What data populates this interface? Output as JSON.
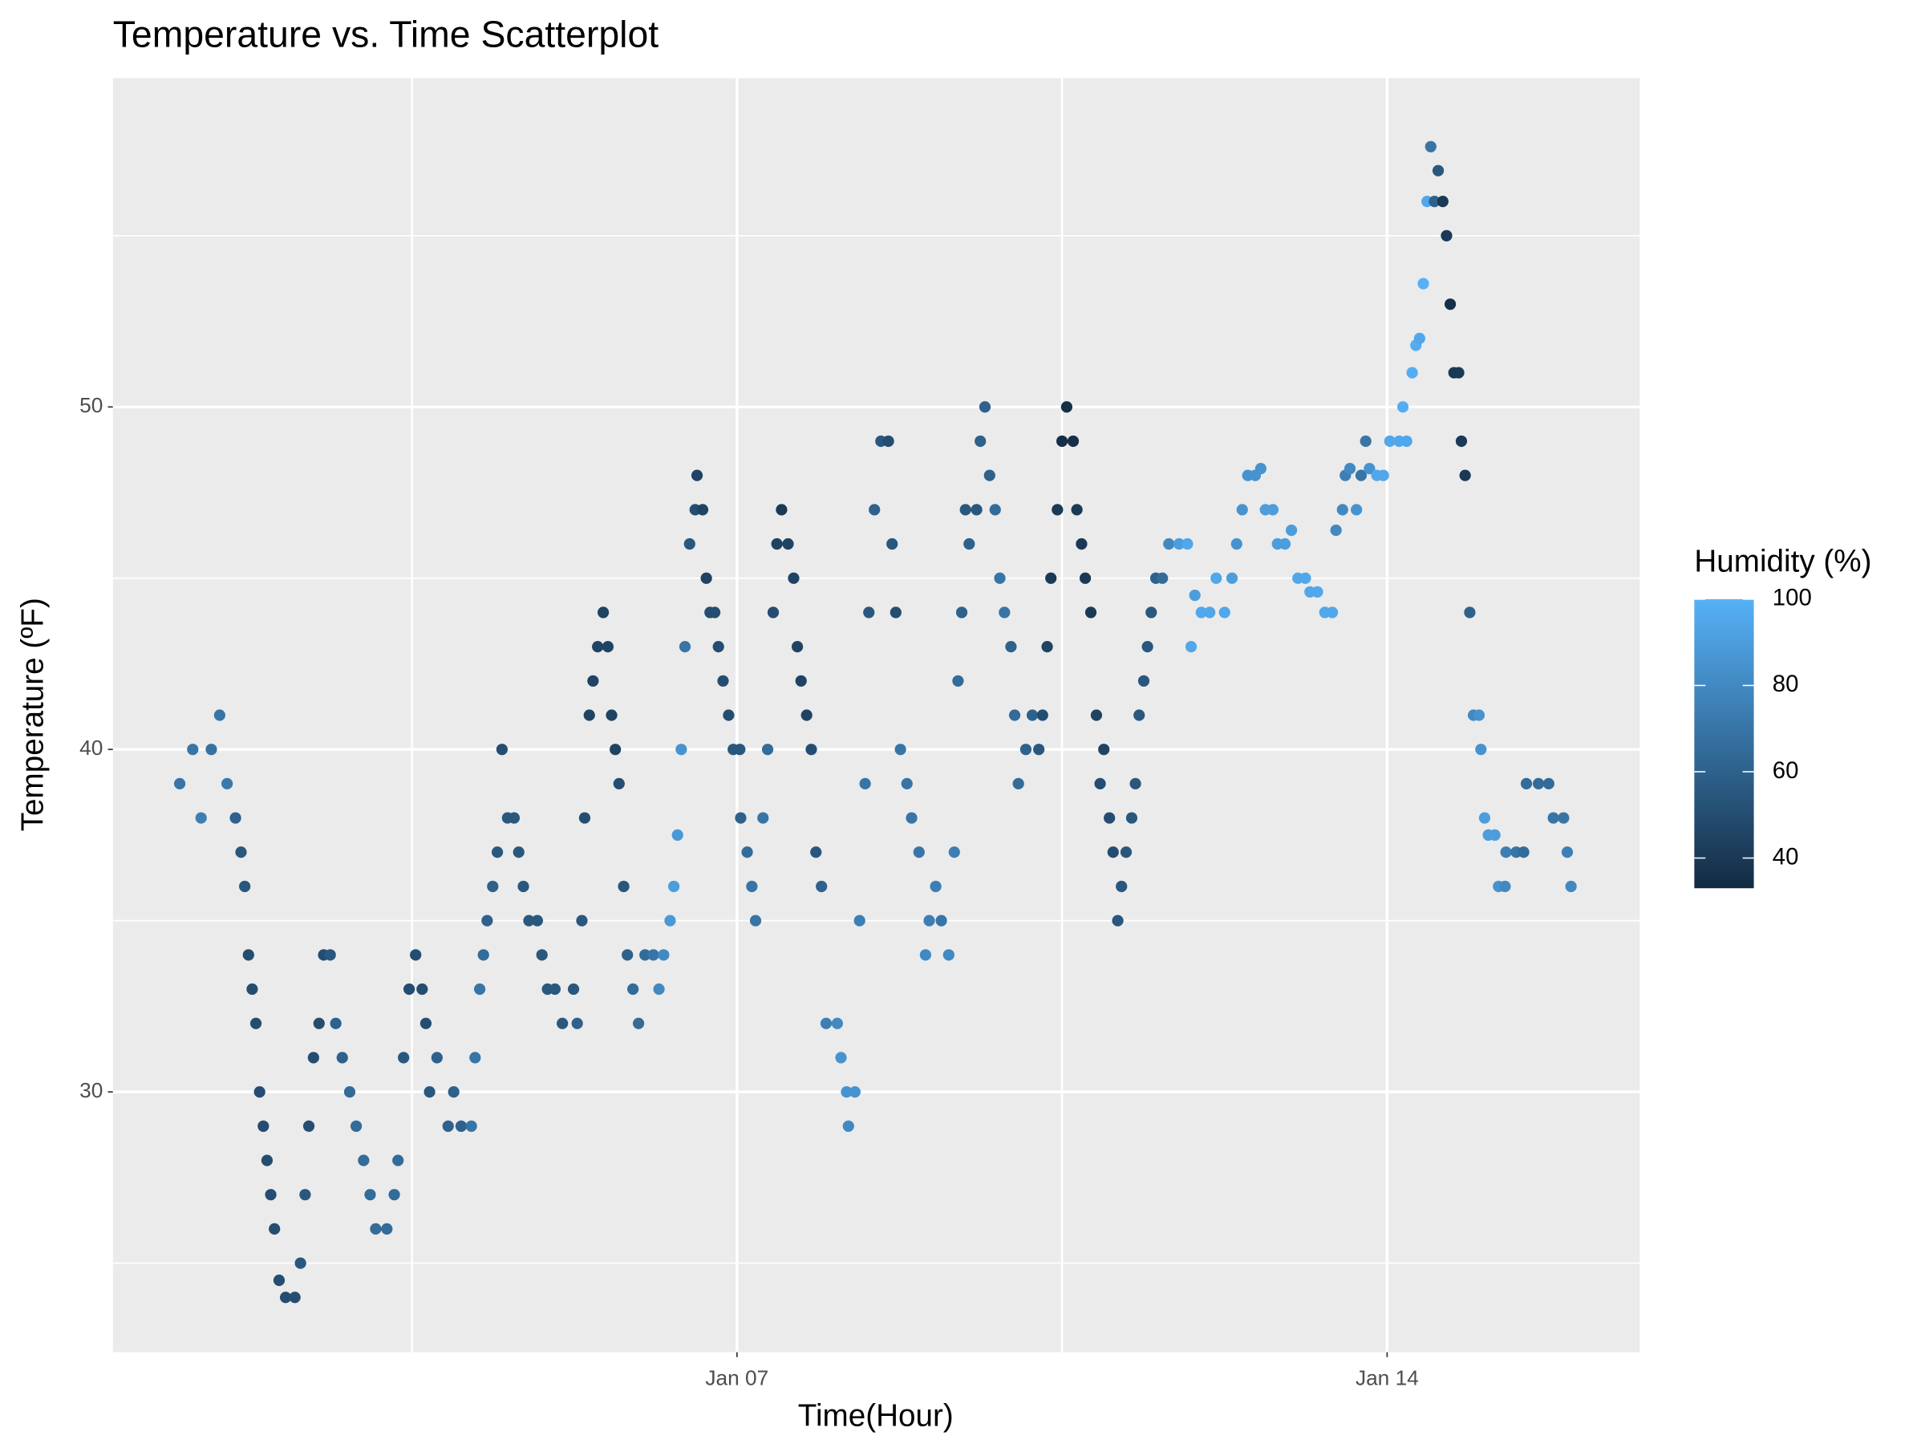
{
  "chart_data": {
    "type": "scatter",
    "title": "Temperature vs. Time Scatterplot",
    "x_label": "Time(Hour)",
    "y_label": "Temperature (ºF)",
    "x": [
      1.0,
      1.14,
      1.23,
      1.34,
      1.43,
      1.51,
      1.6,
      1.66,
      1.7,
      1.74,
      1.78,
      1.82,
      1.86,
      1.9,
      1.94,
      1.98,
      2.02,
      2.07,
      2.14,
      2.24,
      2.3,
      2.35,
      2.39,
      2.44,
      2.5,
      2.55,
      2.62,
      2.68,
      2.75,
      2.83,
      2.9,
      2.98,
      3.05,
      3.11,
      3.23,
      3.31,
      3.35,
      3.41,
      3.47,
      3.54,
      3.61,
      3.65,
      3.69,
      3.77,
      3.89,
      3.95,
      4.03,
      4.14,
      4.18,
      4.23,
      4.27,
      4.31,
      4.37,
      4.42,
      4.47,
      4.53,
      4.6,
      4.65,
      4.7,
      4.76,
      4.85,
      4.9,
      4.96,
      5.04,
      5.12,
      5.24,
      5.28,
      5.33,
      5.36,
      5.41,
      5.45,
      5.5,
      5.56,
      5.61,
      5.65,
      5.69,
      5.73,
      5.78,
      5.82,
      5.88,
      5.94,
      6.01,
      6.1,
      6.16,
      6.21,
      6.28,
      6.32,
      6.36,
      6.4,
      6.44,
      6.49,
      6.55,
      6.57,
      6.63,
      6.67,
      6.71,
      6.76,
      6.8,
      6.85,
      6.91,
      6.96,
      7.03,
      7.04,
      7.11,
      7.16,
      7.2,
      7.28,
      7.33,
      7.39,
      7.43,
      7.48,
      7.55,
      7.61,
      7.65,
      7.69,
      7.75,
      7.8,
      7.85,
      7.91,
      7.96,
      8.08,
      8.12,
      8.18,
      8.2,
      8.27,
      8.32,
      8.38,
      8.42,
      8.48,
      8.55,
      8.63,
      8.67,
      8.71,
      8.76,
      8.83,
      8.88,
      8.96,
      9.03,
      9.07,
      9.14,
      9.2,
      9.28,
      9.34,
      9.38,
      9.42,
      9.46,
      9.5,
      9.58,
      9.62,
      9.67,
      9.72,
      9.78,
      9.83,
      9.88,
      9.95,
      9.99,
      10.03,
      10.11,
      10.18,
      10.25,
      10.29,
      10.34,
      10.38,
      10.45,
      10.5,
      10.55,
      10.62,
      10.66,
      10.71,
      10.75,
      10.81,
      10.87,
      10.91,
      10.95,
      11.01,
      11.05,
      11.1,
      11.14,
      11.19,
      11.25,
      11.29,
      11.33,
      11.38,
      11.42,
      11.46,
      11.51,
      11.58,
      11.65,
      11.76,
      11.85,
      11.89,
      11.93,
      12.0,
      12.09,
      12.16,
      12.25,
      12.33,
      12.38,
      12.44,
      12.5,
      12.58,
      12.64,
      12.69,
      12.77,
      12.82,
      12.9,
      12.97,
      13.04,
      13.12,
      13.17,
      13.25,
      13.33,
      13.41,
      13.45,
      13.52,
      13.55,
      13.6,
      13.67,
      13.72,
      13.77,
      13.81,
      13.89,
      13.96,
      14.03,
      14.13,
      14.17,
      14.21,
      14.27,
      14.31,
      14.35,
      14.39,
      14.43,
      14.47,
      14.51,
      14.55,
      14.6,
      14.64,
      14.68,
      14.72,
      14.77,
      14.8,
      14.84,
      14.89,
      14.93,
      14.99,
      15.01,
      15.05,
      15.09,
      15.16,
      15.2,
      15.27,
      15.28,
      15.39,
      15.47,
      15.5,
      15.63,
      15.74,
      15.79,
      15.9,
      15.94,
      15.98
    ],
    "values": [
      39,
      40,
      38,
      40,
      41,
      39,
      38,
      37,
      36,
      34,
      33,
      32,
      30,
      29,
      28,
      27,
      26,
      24.5,
      24,
      24,
      25,
      27,
      29,
      31,
      32,
      34,
      34,
      32,
      31,
      30,
      29,
      28,
      27,
      26,
      26,
      27,
      28,
      31,
      33,
      34,
      33,
      32,
      30,
      31,
      29,
      30,
      29,
      29,
      31,
      33,
      34,
      35,
      36,
      37,
      40,
      38,
      38,
      37,
      36,
      35,
      35,
      34,
      33,
      33,
      32,
      33,
      32,
      35,
      38,
      41,
      42,
      43,
      44,
      43,
      41,
      40,
      39,
      36,
      34,
      33,
      32,
      34,
      34,
      33,
      34,
      35,
      36,
      37.5,
      40,
      43,
      46,
      47,
      48,
      47,
      45,
      44,
      44,
      43,
      42,
      41,
      40,
      40,
      38,
      37,
      36,
      35,
      38,
      40,
      44,
      46,
      47,
      46,
      45,
      43,
      42,
      41,
      40,
      37,
      36,
      32,
      32,
      31,
      30,
      29,
      30,
      35,
      39,
      44,
      47,
      49,
      49,
      46,
      44,
      40,
      39,
      38,
      37,
      34,
      35,
      36,
      35,
      34,
      37,
      42,
      44,
      47,
      46,
      47,
      49,
      50,
      48,
      47,
      45,
      44,
      43,
      41,
      39,
      40,
      41,
      40,
      41,
      43,
      45,
      47,
      49,
      50,
      49,
      47,
      46,
      45,
      44,
      41,
      39,
      40,
      38,
      37,
      35,
      36,
      37,
      38,
      39,
      41,
      42,
      43,
      44,
      45,
      45,
      46,
      46,
      46,
      43,
      44.5,
      44,
      44,
      45,
      44,
      45,
      46,
      47,
      48,
      48,
      48.2,
      47,
      47,
      46,
      46,
      46.4,
      45,
      45,
      44.6,
      44.6,
      44,
      44,
      46.4,
      47,
      48,
      48.2,
      47,
      48,
      49,
      48.2,
      48,
      48,
      49,
      49,
      50,
      49,
      51,
      51.8,
      52,
      53.6,
      56,
      57.6,
      56,
      56.9,
      56,
      55,
      53,
      51,
      51,
      49,
      48,
      44,
      41,
      41,
      40,
      38,
      37.5,
      37.5,
      36,
      36,
      37,
      37,
      37,
      39,
      39,
      39,
      38,
      38,
      37,
      36
    ],
    "color_values": [
      70,
      70,
      75,
      68,
      70,
      72,
      60,
      55,
      55,
      50,
      50,
      50,
      50,
      50,
      50,
      50,
      50,
      50,
      50,
      50,
      55,
      55,
      50,
      50,
      50,
      50,
      55,
      60,
      60,
      65,
      65,
      65,
      65,
      65,
      65,
      65,
      65,
      55,
      50,
      50,
      50,
      50,
      55,
      60,
      60,
      60,
      60,
      70,
      70,
      70,
      65,
      60,
      60,
      55,
      50,
      55,
      55,
      55,
      55,
      55,
      55,
      55,
      55,
      55,
      55,
      55,
      60,
      55,
      50,
      45,
      45,
      45,
      45,
      45,
      45,
      45,
      50,
      55,
      60,
      65,
      65,
      65,
      70,
      80,
      80,
      88,
      90,
      88,
      85,
      70,
      55,
      50,
      45,
      45,
      45,
      50,
      50,
      50,
      50,
      50,
      55,
      55,
      60,
      65,
      70,
      70,
      70,
      65,
      50,
      45,
      40,
      45,
      45,
      45,
      45,
      45,
      50,
      55,
      60,
      75,
      80,
      85,
      85,
      80,
      85,
      75,
      70,
      55,
      60,
      55,
      50,
      55,
      50,
      70,
      70,
      70,
      70,
      80,
      75,
      75,
      70,
      80,
      75,
      65,
      60,
      55,
      60,
      55,
      60,
      60,
      60,
      65,
      70,
      70,
      60,
      65,
      65,
      60,
      60,
      55,
      50,
      45,
      40,
      40,
      35,
      35,
      35,
      40,
      40,
      40,
      40,
      45,
      50,
      45,
      50,
      50,
      55,
      55,
      55,
      55,
      55,
      55,
      55,
      55,
      55,
      60,
      65,
      80,
      90,
      95,
      95,
      90,
      95,
      95,
      95,
      95,
      90,
      85,
      85,
      85,
      85,
      85,
      90,
      90,
      90,
      90,
      90,
      95,
      95,
      95,
      95,
      95,
      95,
      80,
      80,
      75,
      80,
      85,
      70,
      70,
      85,
      95,
      95,
      95,
      95,
      98,
      95,
      98,
      98,
      95,
      100,
      95,
      70,
      60,
      55,
      40,
      40,
      35,
      40,
      40,
      40,
      40,
      60,
      80,
      85,
      85,
      90,
      90,
      90,
      85,
      80,
      75,
      70,
      65,
      65,
      65,
      65,
      70,
      70,
      75,
      80
    ],
    "color_scale": {
      "title": "Humidity (%)",
      "low": "#132B43",
      "high": "#56B1F7",
      "limits": [
        33,
        100
      ],
      "ticks": [
        40,
        60,
        80,
        100
      ]
    },
    "xlim": [
      0.28,
      16.72
    ],
    "xticks": [
      {
        "value": 7,
        "label": "Jan 07"
      },
      {
        "value": 14,
        "label": "Jan 14"
      }
    ],
    "x_minor_ticks": [
      3.5,
      10.5
    ],
    "ylim": [
      22.4,
      59.6
    ],
    "yticks": [
      30,
      40,
      50
    ],
    "y_minor_ticks": [
      25,
      35,
      45,
      55
    ],
    "grid": true,
    "panel_color": "#EBEBEB"
  }
}
